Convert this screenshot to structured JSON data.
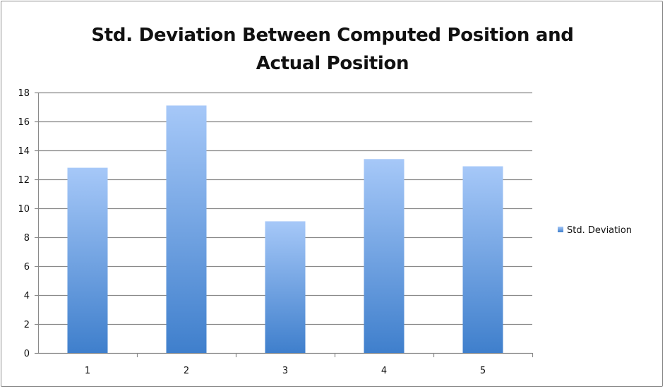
{
  "chart_data": {
    "type": "bar",
    "title": "Std. Deviation Between Computed Position and Actual Position",
    "categories": [
      "1",
      "2",
      "3",
      "4",
      "5"
    ],
    "series": [
      {
        "name": "Std. Deviation",
        "values": [
          12.8,
          17.1,
          9.1,
          13.4,
          12.9
        ]
      }
    ],
    "xlabel": "",
    "ylabel": "",
    "ylim": [
      0,
      18
    ],
    "yticks": [
      0,
      2,
      4,
      6,
      8,
      10,
      12,
      14,
      16,
      18
    ],
    "grid": true,
    "legend_position": "right",
    "colors": {
      "bar_top": "#a6c8f8",
      "bar_bottom": "#3f7fcc",
      "gridline": "#8a8a8a"
    }
  }
}
